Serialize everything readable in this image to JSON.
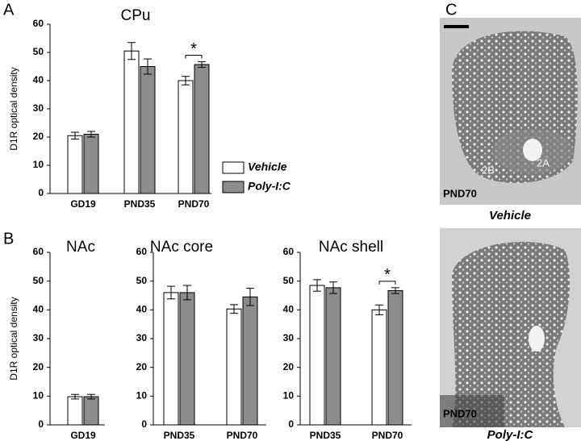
{
  "panels": {
    "a": "A",
    "b": "B",
    "c": "C"
  },
  "legend": [
    {
      "name": "Vehicle",
      "color": "#ffffff"
    },
    {
      "name": "Poly-I:C",
      "color": "#8c8c8c"
    }
  ],
  "chart_data": [
    {
      "type": "bar",
      "title": "CPu",
      "ylabel": "D1R optical density",
      "categories": [
        "GD19",
        "PND35",
        "PND70"
      ],
      "series": [
        {
          "color": "#ffffff",
          "values": [
            20.5,
            50.5,
            40
          ],
          "errors": [
            1.2,
            3,
            1.5
          ]
        },
        {
          "color": "#8c8c8c",
          "values": [
            21,
            45,
            45.7
          ],
          "errors": [
            1,
            2.7,
            1
          ]
        }
      ],
      "ylim": [
        0,
        60
      ],
      "yticks": [
        0,
        10,
        20,
        30,
        40,
        50,
        60
      ],
      "annotations": [
        {
          "text": "*",
          "category": "PND70"
        }
      ]
    },
    {
      "type": "bar",
      "title": "NAc",
      "ylabel": "D1R optical density",
      "categories": [
        "GD19"
      ],
      "series": [
        {
          "color": "#ffffff",
          "values": [
            9.8
          ],
          "errors": [
            0.8
          ]
        },
        {
          "color": "#8c8c8c",
          "values": [
            9.8
          ],
          "errors": [
            0.8
          ]
        }
      ],
      "ylim": [
        0,
        60
      ],
      "yticks": [
        0,
        10,
        20,
        30,
        40,
        50,
        60
      ]
    },
    {
      "type": "bar",
      "title": "NAc core",
      "categories": [
        "PND35",
        "PND70"
      ],
      "series": [
        {
          "color": "#ffffff",
          "values": [
            46,
            40.3
          ],
          "errors": [
            2.2,
            1.5
          ]
        },
        {
          "color": "#8c8c8c",
          "values": [
            46,
            44.5
          ],
          "errors": [
            2.5,
            3
          ]
        }
      ],
      "ylim": [
        0,
        60
      ],
      "yticks": [
        0,
        10,
        20,
        30,
        40,
        50,
        60
      ]
    },
    {
      "type": "bar",
      "title": "NAc shell",
      "categories": [
        "PND35",
        "PND70"
      ],
      "series": [
        {
          "color": "#ffffff",
          "values": [
            48.5,
            40
          ],
          "errors": [
            2,
            1.7
          ]
        },
        {
          "color": "#8c8c8c",
          "values": [
            47.7,
            46.7
          ],
          "errors": [
            2,
            1
          ]
        }
      ],
      "ylim": [
        0,
        60
      ],
      "yticks": [
        0,
        10,
        20,
        30,
        40,
        50,
        60
      ],
      "annotations": [
        {
          "text": "*",
          "category": "PND70"
        }
      ]
    }
  ],
  "images": [
    {
      "label": "PND70",
      "caption": "Vehicle",
      "regions": [
        "2B",
        "2A"
      ]
    },
    {
      "label": "PND70",
      "caption": "Poly-I:C"
    }
  ]
}
